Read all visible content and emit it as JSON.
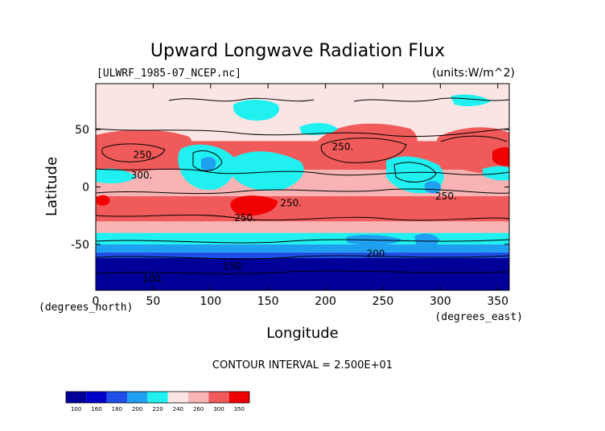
{
  "chart_data": {
    "type": "heatmap",
    "title": "Upward Longwave Radiation Flux",
    "dataset_label": "[ULWRF_1985-07_NCEP.nc]",
    "units_label": "(units:W/m^2)",
    "xlabel": "Longitude",
    "ylabel": "Latitude",
    "x_unit_note": "(degrees_east)",
    "y_unit_note": "(degrees_north)",
    "xlim": [
      0,
      360
    ],
    "ylim": [
      -90,
      90
    ],
    "x_ticks": [
      0,
      50,
      100,
      150,
      200,
      250,
      300,
      350
    ],
    "y_ticks": [
      -50,
      0,
      50
    ],
    "contour_interval_text": "CONTOUR INTERVAL = 2.500E+01",
    "contour_labels": [
      {
        "text": "250.",
        "lon": 42,
        "lat": 28
      },
      {
        "text": "300.",
        "lon": 40,
        "lat": 10
      },
      {
        "text": "250.",
        "lon": 215,
        "lat": 35
      },
      {
        "text": "250.",
        "lon": 170,
        "lat": -14
      },
      {
        "text": "250.",
        "lon": 130,
        "lat": -27
      },
      {
        "text": "250.",
        "lon": 305,
        "lat": -8
      },
      {
        "text": "200.",
        "lon": 245,
        "lat": -58
      },
      {
        "text": "150.",
        "lon": 120,
        "lat": -69
      },
      {
        "text": "100.",
        "lon": 50,
        "lat": -80
      }
    ],
    "colorbar": {
      "levels": [
        "100",
        "160",
        "180",
        "200",
        "220",
        "240",
        "260",
        "300",
        "350"
      ],
      "colors": [
        "#000099",
        "#0000cc",
        "#1f4fe6",
        "#1f9ff0",
        "#20f0f0",
        "#fbe4e4",
        "#f8b4b4",
        "#f05a5a",
        "#f00000"
      ]
    },
    "latitude_bands": [
      {
        "lat": [
          -90,
          -62
        ],
        "value": "<160",
        "color": "#000099"
      },
      {
        "lat": [
          -62,
          -57
        ],
        "value": "160-180",
        "color": "#1f4fe6"
      },
      {
        "lat": [
          -57,
          -50
        ],
        "value": "180-200",
        "color": "#1f9ff0"
      },
      {
        "lat": [
          -50,
          -40
        ],
        "value": "200-220",
        "color": "#20f0f0"
      },
      {
        "lat": [
          -40,
          -30
        ],
        "value": "240-260",
        "color": "#f8b4b4"
      },
      {
        "lat": [
          -30,
          -8
        ],
        "value": "260-300",
        "color": "#f05a5a"
      },
      {
        "lat": [
          -8,
          15
        ],
        "value": "240-260",
        "color": "#f8b4b4"
      },
      {
        "lat": [
          15,
          40
        ],
        "value": "260-300",
        "color": "#f05a5a"
      },
      {
        "lat": [
          40,
          70
        ],
        "value": "220-240",
        "color": "#fbe4e4"
      },
      {
        "lat": [
          70,
          90
        ],
        "value": "220-240",
        "color": "#fbe4e4"
      }
    ]
  }
}
